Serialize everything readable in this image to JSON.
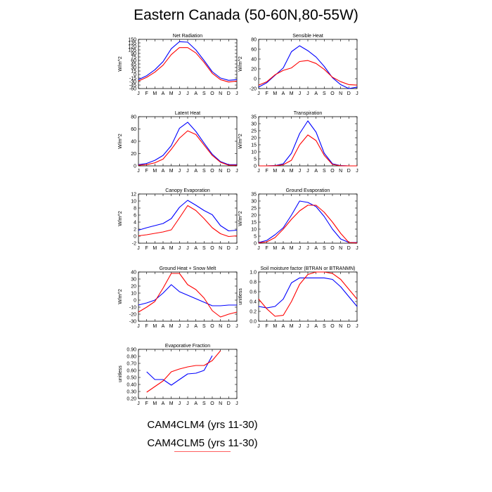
{
  "title": "Eastern Canada (50-60N,80-55W)",
  "legend": {
    "entries": [
      {
        "label": "CAM4CLM4 (yrs 11-30)",
        "color": "#0000ff"
      },
      {
        "label": "CAM4CLM5 (yrs 11-30)",
        "color": "#ff0000"
      }
    ]
  },
  "chart_data": [
    {
      "type": "line",
      "title": "Net Radiation",
      "ylabel": "W/m^2",
      "categories": [
        "J",
        "F",
        "M",
        "A",
        "M",
        "J",
        "J",
        "A",
        "S",
        "O",
        "N",
        "D",
        "J"
      ],
      "yticks": [
        -60,
        -45,
        -30,
        -15,
        0,
        15,
        30,
        45,
        60,
        75,
        90,
        105,
        120,
        135,
        150
      ],
      "ylim": [
        -60,
        150
      ],
      "series": [
        {
          "name": "CAM4CLM4 (yrs 11-30)",
          "color": "#0000ff",
          "values": [
            -22,
            -5,
            20,
            55,
            110,
            140,
            138,
            105,
            60,
            12,
            -15,
            -25,
            -22
          ]
        },
        {
          "name": "CAM4CLM5 (yrs 11-30)",
          "color": "#ff0000",
          "values": [
            -28,
            -12,
            10,
            40,
            85,
            115,
            115,
            92,
            52,
            5,
            -22,
            -32,
            -28
          ]
        }
      ]
    },
    {
      "type": "line",
      "title": "Sensible Heat",
      "ylabel": "W/m^2",
      "categories": [
        "J",
        "F",
        "M",
        "A",
        "M",
        "J",
        "J",
        "A",
        "S",
        "O",
        "N",
        "D",
        "J"
      ],
      "yticks": [
        -20,
        0,
        20,
        40,
        60,
        80
      ],
      "ylim": [
        -20,
        80
      ],
      "series": [
        {
          "name": "CAM4CLM4 (yrs 11-30)",
          "color": "#0000ff",
          "values": [
            -17,
            -8,
            7,
            22,
            55,
            67,
            57,
            44,
            25,
            2,
            -12,
            -20,
            -17
          ]
        },
        {
          "name": "CAM4CLM5 (yrs 11-30)",
          "color": "#ff0000",
          "values": [
            -13,
            -6,
            8,
            17,
            22,
            35,
            37,
            31,
            19,
            3,
            -6,
            -12,
            -13
          ]
        }
      ]
    },
    {
      "type": "line",
      "title": "Latent Heat",
      "ylabel": "W/m^2",
      "categories": [
        "J",
        "F",
        "M",
        "A",
        "M",
        "J",
        "J",
        "A",
        "S",
        "O",
        "N",
        "D",
        "J"
      ],
      "yticks": [
        0,
        20,
        40,
        60,
        80
      ],
      "ylim": [
        0,
        80
      ],
      "series": [
        {
          "name": "CAM4CLM4 (yrs 11-30)",
          "color": "#0000ff",
          "values": [
            2,
            4,
            9,
            17,
            33,
            61,
            71,
            56,
            37,
            19,
            7,
            2,
            2
          ]
        },
        {
          "name": "CAM4CLM5 (yrs 11-30)",
          "color": "#ff0000",
          "values": [
            1,
            2,
            5,
            11,
            27,
            45,
            57,
            51,
            34,
            17,
            6,
            1,
            1
          ]
        }
      ]
    },
    {
      "type": "line",
      "title": "Transpiration",
      "ylabel": "W/m^2",
      "categories": [
        "J",
        "F",
        "M",
        "A",
        "M",
        "J",
        "J",
        "A",
        "S",
        "O",
        "N",
        "D",
        "J"
      ],
      "yticks": [
        0,
        5,
        10,
        15,
        20,
        25,
        30,
        35
      ],
      "ylim": [
        0,
        35
      ],
      "series": [
        {
          "name": "CAM4CLM4 (yrs 11-30)",
          "color": "#0000ff",
          "values": [
            0,
            0,
            0.2,
            1.5,
            9,
            23,
            32,
            24,
            9,
            1.5,
            0.2,
            0,
            0
          ]
        },
        {
          "name": "CAM4CLM5 (yrs 11-30)",
          "color": "#ff0000",
          "values": [
            0,
            0,
            0.1,
            0.8,
            4,
            15,
            22,
            18,
            7.5,
            1,
            0.1,
            0,
            0
          ]
        }
      ]
    },
    {
      "type": "line",
      "title": "Canopy Evaporation",
      "ylabel": "W/m^2",
      "categories": [
        "J",
        "F",
        "M",
        "A",
        "M",
        "J",
        "J",
        "A",
        "S",
        "O",
        "N",
        "D",
        "J"
      ],
      "yticks": [
        -2,
        0,
        2,
        4,
        6,
        8,
        10,
        12
      ],
      "ylim": [
        -2,
        12
      ],
      "series": [
        {
          "name": "CAM4CLM4 (yrs 11-30)",
          "color": "#0000ff",
          "values": [
            1.7,
            2.4,
            3.0,
            3.6,
            5.0,
            8.2,
            10.2,
            8.8,
            7.3,
            6.1,
            3.0,
            1.5,
            1.7
          ]
        },
        {
          "name": "CAM4CLM5 (yrs 11-30)",
          "color": "#ff0000",
          "values": [
            0.1,
            0.4,
            0.8,
            1.2,
            1.8,
            5.2,
            8.7,
            7.3,
            5.0,
            2.4,
            0.7,
            -0.1,
            0.1
          ]
        }
      ]
    },
    {
      "type": "line",
      "title": "Ground Evaporation",
      "ylabel": "W/m^2",
      "categories": [
        "J",
        "F",
        "M",
        "A",
        "M",
        "J",
        "J",
        "A",
        "S",
        "O",
        "N",
        "D",
        "J"
      ],
      "yticks": [
        0,
        5,
        10,
        15,
        20,
        25,
        30,
        35
      ],
      "ylim": [
        0,
        35
      ],
      "series": [
        {
          "name": "CAM4CLM4 (yrs 11-30)",
          "color": "#0000ff",
          "values": [
            0.5,
            2,
            6,
            11,
            20,
            30,
            29,
            26,
            19,
            10,
            3,
            0.5,
            0.5
          ]
        },
        {
          "name": "CAM4CLM5 (yrs 11-30)",
          "color": "#ff0000",
          "values": [
            0.2,
            1,
            4,
            10,
            17,
            23,
            27,
            27,
            22,
            15,
            7,
            0.5,
            0.2
          ]
        }
      ]
    },
    {
      "type": "line",
      "title": "Ground Heat + Snow Melt",
      "ylabel": "W/m^2",
      "categories": [
        "J",
        "F",
        "M",
        "A",
        "M",
        "J",
        "J",
        "A",
        "S",
        "O",
        "N",
        "D",
        "J"
      ],
      "yticks": [
        -30,
        -20,
        -10,
        0,
        10,
        20,
        30,
        40
      ],
      "ylim": [
        -30,
        40
      ],
      "series": [
        {
          "name": "CAM4CLM4 (yrs 11-30)",
          "color": "#0000ff",
          "values": [
            -7,
            -4,
            0,
            10,
            22,
            12,
            7,
            2,
            -3,
            -8,
            -8,
            -7,
            -7
          ]
        },
        {
          "name": "CAM4CLM5 (yrs 11-30)",
          "color": "#ff0000",
          "values": [
            -17,
            -10,
            -2,
            17,
            38,
            38,
            22,
            15,
            3,
            -15,
            -24,
            -20,
            -17
          ]
        }
      ]
    },
    {
      "type": "line",
      "title": "Soil moisture factor (BTRAN or BTRANMN)",
      "ylabel": "unitless",
      "categories": [
        "J",
        "F",
        "M",
        "A",
        "M",
        "J",
        "J",
        "A",
        "S",
        "O",
        "N",
        "D",
        "J"
      ],
      "yticks": [
        0.0,
        0.2,
        0.4,
        0.6,
        0.8,
        1.0
      ],
      "ylim": [
        0.0,
        1.0
      ],
      "series": [
        {
          "name": "CAM4CLM4 (yrs 11-30)",
          "color": "#0000ff",
          "values": [
            0.3,
            0.27,
            0.3,
            0.45,
            0.78,
            0.88,
            0.88,
            0.88,
            0.88,
            0.85,
            0.7,
            0.5,
            0.3
          ]
        },
        {
          "name": "CAM4CLM5 (yrs 11-30)",
          "color": "#ff0000",
          "values": [
            0.45,
            0.25,
            0.1,
            0.12,
            0.4,
            0.75,
            0.95,
            1.0,
            1.0,
            0.97,
            0.85,
            0.65,
            0.45
          ]
        }
      ]
    },
    {
      "type": "line",
      "title": "Evaporative Fraction",
      "ylabel": "unitless",
      "categories": [
        "J",
        "F",
        "M",
        "A",
        "M",
        "J",
        "J",
        "A",
        "S",
        "O",
        "N",
        "D",
        "J"
      ],
      "yticks": [
        0.2,
        0.3,
        0.4,
        0.5,
        0.6,
        0.7,
        0.8,
        0.9
      ],
      "ylim": [
        0.2,
        0.9
      ],
      "series": [
        {
          "name": "CAM4CLM4 (yrs 11-30)",
          "color": "#0000ff",
          "values": [
            null,
            0.58,
            0.47,
            0.47,
            0.39,
            0.47,
            0.55,
            0.56,
            0.6,
            0.81,
            null,
            null,
            null
          ]
        },
        {
          "name": "CAM4CLM5 (yrs 11-30)",
          "color": "#ff0000",
          "values": [
            null,
            0.29,
            0.37,
            0.45,
            0.58,
            0.62,
            0.65,
            0.67,
            0.67,
            0.74,
            0.88,
            null,
            null
          ]
        }
      ]
    }
  ]
}
